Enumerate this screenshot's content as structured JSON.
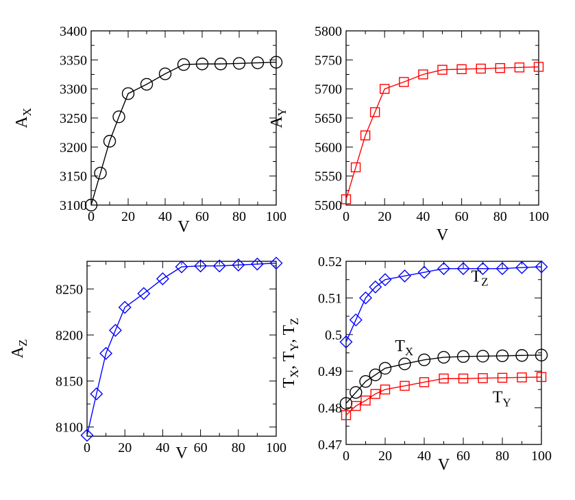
{
  "chart_data": [
    {
      "type": "line",
      "xlabel": "V",
      "ylabel": {
        "main": "A",
        "sub": "X"
      },
      "xlim": [
        0,
        100
      ],
      "ylim": [
        3100,
        3400
      ],
      "xticks": [
        0,
        20,
        40,
        60,
        80,
        100
      ],
      "yticks": [
        3100,
        3150,
        3200,
        3250,
        3300,
        3350,
        3400
      ],
      "grid": false,
      "series": [
        {
          "color": "#000000",
          "marker": "circle",
          "x": [
            0,
            5,
            10,
            15,
            20,
            30,
            40,
            50,
            60,
            70,
            80,
            90,
            100
          ],
          "y": [
            3100,
            3155,
            3210,
            3252,
            3292,
            3308,
            3326,
            3342,
            3343,
            3343,
            3344,
            3345,
            3346
          ]
        }
      ]
    },
    {
      "type": "line",
      "xlabel": "V",
      "ylabel": {
        "main": "A",
        "sub": "Y"
      },
      "xlim": [
        0,
        100
      ],
      "ylim": [
        5500,
        5800
      ],
      "xticks": [
        0,
        20,
        40,
        60,
        80,
        100
      ],
      "yticks": [
        5500,
        5550,
        5600,
        5650,
        5700,
        5750,
        5800
      ],
      "grid": false,
      "series": [
        {
          "color": "#ff0000",
          "marker": "square",
          "x": [
            0,
            5,
            10,
            15,
            20,
            30,
            40,
            50,
            60,
            70,
            80,
            90,
            100
          ],
          "y": [
            5510,
            5565,
            5620,
            5660,
            5700,
            5712,
            5725,
            5733,
            5734,
            5735,
            5736,
            5737,
            5738
          ]
        }
      ]
    },
    {
      "type": "line",
      "xlabel": "V",
      "ylabel": {
        "main": "A",
        "sub": "Z"
      },
      "xlim": [
        0,
        100
      ],
      "ylim": [
        8090,
        8280
      ],
      "xticks": [
        0,
        20,
        40,
        60,
        80,
        100
      ],
      "yticks": [
        8100,
        8150,
        8200,
        8250
      ],
      "grid": false,
      "series": [
        {
          "color": "#0000ff",
          "marker": "diamond",
          "x": [
            0,
            5,
            10,
            15,
            20,
            30,
            40,
            50,
            60,
            70,
            80,
            90,
            100
          ],
          "y": [
            8091,
            8136,
            8180,
            8205,
            8230,
            8245,
            8261,
            8274,
            8275,
            8275,
            8276,
            8277,
            8278
          ]
        }
      ]
    },
    {
      "type": "line",
      "xlabel": "V",
      "ylabel": "T",
      "ylabel_parts": [
        {
          "main": "T",
          "sub": "X"
        },
        {
          "main": ", T",
          "sub": "Y"
        },
        {
          "main": ", T",
          "sub": "Z"
        }
      ],
      "xlim": [
        0,
        100
      ],
      "ylim": [
        0.47,
        0.52
      ],
      "xticks": [
        0,
        20,
        40,
        60,
        80,
        100
      ],
      "yticks": [
        0.47,
        0.48,
        0.49,
        0.5,
        0.51,
        0.52
      ],
      "ytick_labels": [
        "0.47",
        "0.48",
        "0.49",
        "0.5",
        "0.51",
        "0.52"
      ],
      "grid": false,
      "series": [
        {
          "label": {
            "main": "T",
            "sub": "Z"
          },
          "label_color": "#8a2be2",
          "label_at": [
            64,
            0.5145
          ],
          "color": "#0000ff",
          "marker": "diamond",
          "x": [
            0,
            5,
            10,
            15,
            20,
            30,
            40,
            50,
            60,
            70,
            80,
            90,
            100
          ],
          "y": [
            0.498,
            0.504,
            0.51,
            0.513,
            0.515,
            0.516,
            0.517,
            0.518,
            0.518,
            0.518,
            0.518,
            0.5183,
            0.5185
          ]
        },
        {
          "label": {
            "main": "T",
            "sub": "X"
          },
          "label_color": "#000000",
          "label_at": [
            25,
            0.4955
          ],
          "color": "#000000",
          "marker": "circle",
          "x": [
            0,
            5,
            10,
            15,
            20,
            30,
            40,
            50,
            60,
            70,
            80,
            90,
            100
          ],
          "y": [
            0.4812,
            0.4842,
            0.4872,
            0.489,
            0.4908,
            0.492,
            0.4931,
            0.4938,
            0.494,
            0.4941,
            0.4942,
            0.4943,
            0.4944
          ]
        },
        {
          "label": {
            "main": "T",
            "sub": "Y"
          },
          "label_color": "#ff0000",
          "label_at": [
            75,
            0.4815
          ],
          "color": "#ff0000",
          "marker": "square",
          "x": [
            0,
            5,
            10,
            15,
            20,
            30,
            40,
            50,
            60,
            70,
            80,
            90,
            100
          ],
          "y": [
            0.478,
            0.4805,
            0.482,
            0.4838,
            0.485,
            0.486,
            0.487,
            0.488,
            0.488,
            0.4881,
            0.4882,
            0.4883,
            0.4884
          ]
        }
      ]
    }
  ]
}
